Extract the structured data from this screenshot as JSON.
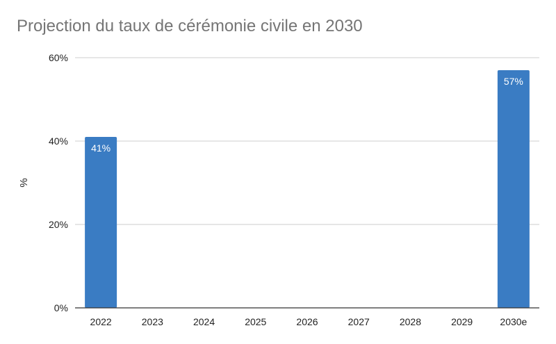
{
  "chart_data": {
    "type": "bar",
    "title": "Projection du taux de cérémonie civile en 2030",
    "ylabel": "%",
    "xlabel": "",
    "categories": [
      "2022",
      "2023",
      "2024",
      "2025",
      "2026",
      "2027",
      "2028",
      "2029",
      "2030e"
    ],
    "values": [
      41,
      null,
      null,
      null,
      null,
      null,
      null,
      null,
      57
    ],
    "data_labels": [
      "41%",
      "",
      "",
      "",
      "",
      "",
      "",
      "",
      "57%"
    ],
    "ylim": [
      0,
      60
    ],
    "yticks": [
      0,
      20,
      40,
      60
    ],
    "ytick_labels": [
      "0%",
      "20%",
      "40%",
      "60%"
    ],
    "grid": true,
    "legend": "none",
    "bar_color": "#3a7cc3",
    "gridline_color": "#cccccc",
    "baseline_color": "#333333"
  }
}
